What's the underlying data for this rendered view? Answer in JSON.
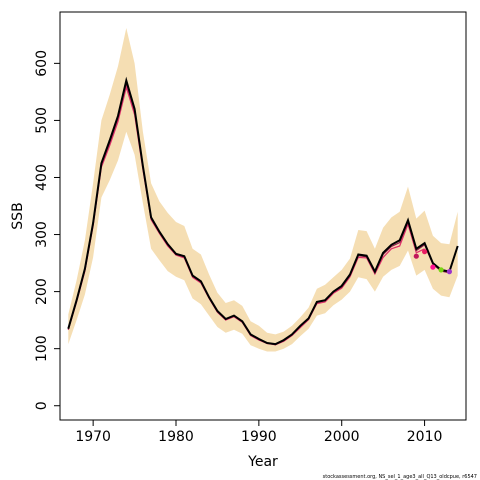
{
  "chart_data": {
    "type": "line",
    "xlabel": "Year",
    "ylabel": "SSB",
    "xlim": [
      1966,
      2015
    ],
    "ylim": [
      -25,
      690
    ],
    "xticks": [
      1970,
      1980,
      1990,
      2000,
      2010
    ],
    "yticks": [
      0,
      100,
      200,
      300,
      400,
      500,
      600
    ],
    "grid": false,
    "footnote": "stockassessment.org, NS_sel_1_age3_all_Q13_oldcpue, r6547",
    "colors": {
      "band": "#f5deb3",
      "main": "#000000",
      "retro_line": "#e0306a",
      "retro_line2": "#8b1a4a",
      "retro_points": [
        "#c2185b",
        "#e91e63",
        "#ff1493",
        "#7cd414",
        "#9932cc"
      ]
    },
    "years": [
      1967,
      1968,
      1969,
      1970,
      1971,
      1972,
      1973,
      1974,
      1975,
      1976,
      1977,
      1978,
      1979,
      1980,
      1981,
      1982,
      1983,
      1984,
      1985,
      1986,
      1987,
      1988,
      1989,
      1990,
      1991,
      1992,
      1993,
      1994,
      1995,
      1996,
      1997,
      1998,
      1999,
      2000,
      2001,
      2002,
      2003,
      2004,
      2005,
      2006,
      2007,
      2008,
      2009,
      2010,
      2011,
      2012,
      2013,
      2014
    ],
    "ssb": [
      135,
      185,
      240,
      320,
      425,
      465,
      508,
      570,
      520,
      420,
      330,
      305,
      283,
      266,
      262,
      228,
      218,
      190,
      166,
      152,
      158,
      148,
      125,
      117,
      110,
      108,
      115,
      125,
      140,
      153,
      182,
      185,
      200,
      210,
      230,
      265,
      263,
      235,
      268,
      282,
      290,
      325,
      275,
      285,
      250,
      238,
      235,
      280
    ],
    "upper": [
      160,
      220,
      290,
      390,
      500,
      545,
      595,
      662,
      600,
      480,
      390,
      358,
      338,
      322,
      315,
      275,
      265,
      230,
      198,
      180,
      185,
      175,
      148,
      140,
      128,
      125,
      130,
      140,
      155,
      172,
      205,
      212,
      225,
      238,
      258,
      308,
      306,
      275,
      312,
      330,
      340,
      384,
      328,
      342,
      298,
      285,
      283,
      340
    ],
    "lower": [
      108,
      150,
      195,
      260,
      365,
      395,
      430,
      480,
      440,
      355,
      275,
      255,
      236,
      226,
      220,
      188,
      178,
      158,
      138,
      128,
      133,
      126,
      106,
      100,
      95,
      95,
      100,
      108,
      122,
      135,
      158,
      162,
      176,
      186,
      200,
      225,
      222,
      200,
      226,
      238,
      245,
      272,
      228,
      238,
      205,
      193,
      190,
      228
    ],
    "retro_series": [
      {
        "years": [
          1967,
          1968,
          1969,
          1970,
          1971,
          1972,
          1973,
          1974,
          1975,
          1976,
          1977,
          1978,
          1979,
          1980,
          1981,
          1982,
          1983,
          1984,
          1985,
          1986,
          1987,
          1988,
          1989,
          1990,
          1991,
          1992,
          1993,
          1994,
          1995,
          1996,
          1997,
          1998,
          1999,
          2000,
          2001,
          2002,
          2003,
          2004,
          2005,
          2006,
          2007,
          2008,
          2009,
          2010
        ],
        "values": [
          133,
          182,
          236,
          315,
          418,
          456,
          498,
          558,
          510,
          414,
          326,
          302,
          280,
          264,
          259,
          225,
          215,
          188,
          164,
          150,
          156,
          146,
          123,
          115,
          109,
          107,
          113,
          123,
          137,
          151,
          179,
          182,
          197,
          206,
          226,
          260,
          259,
          231,
          260,
          275,
          280,
          318,
          268,
          275
        ]
      },
      {
        "years": [
          1967,
          1968,
          1969,
          1970,
          1971,
          1972,
          1973,
          1974,
          1975,
          1976,
          1977,
          1978,
          1979,
          1980,
          1981,
          1982,
          1983,
          1984,
          1985,
          1986,
          1987,
          1988,
          1989,
          1990,
          1991,
          1992,
          1993,
          1994,
          1995,
          1996,
          1997,
          1998,
          1999,
          2000,
          2001,
          2002,
          2003,
          2004,
          2005,
          2006,
          2007,
          2008,
          2009,
          2010,
          2011,
          2012,
          2013
        ],
        "values": [
          134,
          184,
          238,
          318,
          422,
          461,
          504,
          565,
          516,
          418,
          328,
          304,
          282,
          265,
          261,
          227,
          217,
          189,
          165,
          151,
          157,
          147,
          124,
          116,
          110,
          107,
          114,
          124,
          139,
          152,
          181,
          184,
          199,
          208,
          228,
          263,
          261,
          233,
          265,
          279,
          286,
          322,
          272,
          282,
          248,
          236,
          233
        ]
      }
    ],
    "retro_points": [
      {
        "year": 2009,
        "value": 262
      },
      {
        "year": 2010,
        "value": 270
      },
      {
        "year": 2011,
        "value": 243
      },
      {
        "year": 2012,
        "value": 238
      },
      {
        "year": 2013,
        "value": 235
      }
    ]
  }
}
